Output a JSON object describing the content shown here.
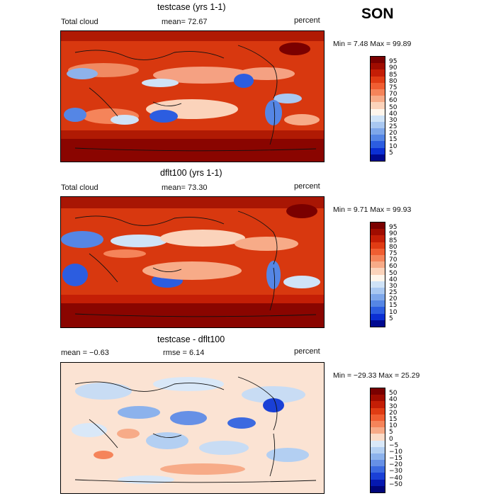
{
  "season": "SON",
  "panels": [
    {
      "title": "testcase (yrs 1-1)",
      "left_label": "Total cloud",
      "mean_label": "mean=  72.67",
      "units": "percent",
      "minmax": "Min =   7.48 Max =  99.89",
      "levels": [
        "95",
        "90",
        "85",
        "80",
        "75",
        "70",
        "60",
        "50",
        "40",
        "30",
        "25",
        "20",
        "15",
        "10",
        "5"
      ],
      "colors": [
        "#7a0000",
        "#a00c00",
        "#c41e06",
        "#e03c14",
        "#f05e32",
        "#f5845a",
        "#f7ab88",
        "#fbd3bb",
        "#fff6ec",
        "#cfe3f7",
        "#a9c8f1",
        "#7ea7ea",
        "#5586e5",
        "#2c5de0",
        "#0b2fd3",
        "#000a90"
      ]
    },
    {
      "title": "dflt100 (yrs 1-1)",
      "left_label": "Total cloud",
      "mean_label": "mean=  73.30",
      "units": "percent",
      "minmax": "Min =   9.71 Max =  99.93",
      "levels": [
        "95",
        "90",
        "85",
        "80",
        "75",
        "70",
        "60",
        "50",
        "40",
        "30",
        "25",
        "20",
        "15",
        "10",
        "5"
      ],
      "colors": [
        "#7a0000",
        "#a00c00",
        "#c41e06",
        "#e03c14",
        "#f05e32",
        "#f5845a",
        "#f7ab88",
        "#fbd3bb",
        "#fff6ec",
        "#cfe3f7",
        "#a9c8f1",
        "#7ea7ea",
        "#5586e5",
        "#2c5de0",
        "#0b2fd3",
        "#000a90"
      ]
    },
    {
      "title": "testcase - dflt100",
      "left_label": "mean =  −0.63",
      "mean_label": "rmse =   6.14",
      "units": "percent",
      "minmax": "Min = −29.33 Max =  25.29",
      "levels": [
        "50",
        "40",
        "30",
        "20",
        "15",
        "10",
        "5",
        "0",
        "−5",
        "−10",
        "−15",
        "−20",
        "−30",
        "−40",
        "−50"
      ],
      "colors": [
        "#7a0000",
        "#a00c00",
        "#c41e06",
        "#e03c14",
        "#f05e32",
        "#f5845a",
        "#f7ab88",
        "#fbdcc8",
        "#d9e8f8",
        "#b3cff2",
        "#8cb2ec",
        "#6690e6",
        "#3c6ae0",
        "#1a40d6",
        "#0518b0",
        "#00057a"
      ]
    }
  ]
}
